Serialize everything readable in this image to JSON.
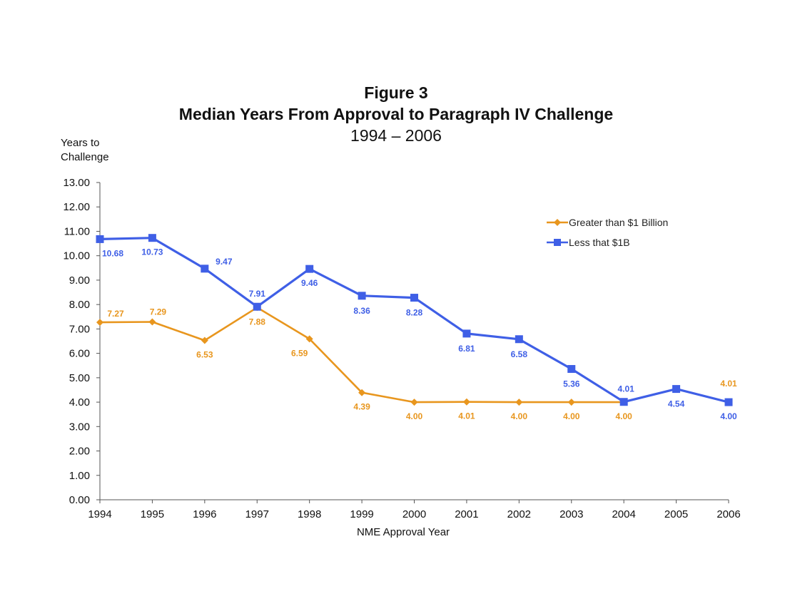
{
  "chart_data": {
    "type": "line",
    "title": "Figure 3",
    "subtitle": "Median Years From Approval to Paragraph IV Challenge",
    "subtitle2": "1994 – 2006",
    "ylabel_line1": "Years to",
    "ylabel_line2": "Challenge",
    "xlabel": "NME Approval Year",
    "ylim": [
      0,
      13
    ],
    "ytick_labels": [
      "0.00",
      "1.00",
      "2.00",
      "3.00",
      "4.00",
      "5.00",
      "6.00",
      "7.00",
      "8.00",
      "9.00",
      "10.00",
      "11.00",
      "12.00",
      "13.00"
    ],
    "categories": [
      "1994",
      "1995",
      "1996",
      "1997",
      "1998",
      "1999",
      "2000",
      "2001",
      "2002",
      "2003",
      "2004",
      "2005",
      "2006"
    ],
    "grid": false,
    "legend_position": "top-right",
    "series": [
      {
        "name": "Greater than $1 Billion",
        "color": "#E8961E",
        "marker": "diamond",
        "values": [
          7.27,
          7.29,
          6.53,
          7.88,
          6.59,
          4.39,
          4.0,
          4.01,
          4.0,
          4.0,
          4.0,
          null,
          null
        ],
        "point_labels": [
          "7.27",
          "7.29",
          "6.53",
          "7.88",
          "6.59",
          "4.39",
          "4.00",
          "4.01",
          "4.00",
          "4.00",
          "4.00",
          "",
          ""
        ]
      },
      {
        "name": "Less that $1B",
        "color": "#3F5FE6",
        "marker": "square",
        "values": [
          10.68,
          10.73,
          9.47,
          7.91,
          9.46,
          8.36,
          8.28,
          6.81,
          6.58,
          5.36,
          4.01,
          4.54,
          4.0
        ],
        "point_labels": [
          "10.68",
          "10.73",
          "9.47",
          "7.91",
          "9.46",
          "8.36",
          "8.28",
          "6.81",
          "6.58",
          "5.36",
          "4.01",
          "4.54",
          "4.00"
        ]
      }
    ],
    "extra_labels": [
      {
        "text": "4.01",
        "color": "#E8961E",
        "near_category": "2006"
      }
    ]
  }
}
